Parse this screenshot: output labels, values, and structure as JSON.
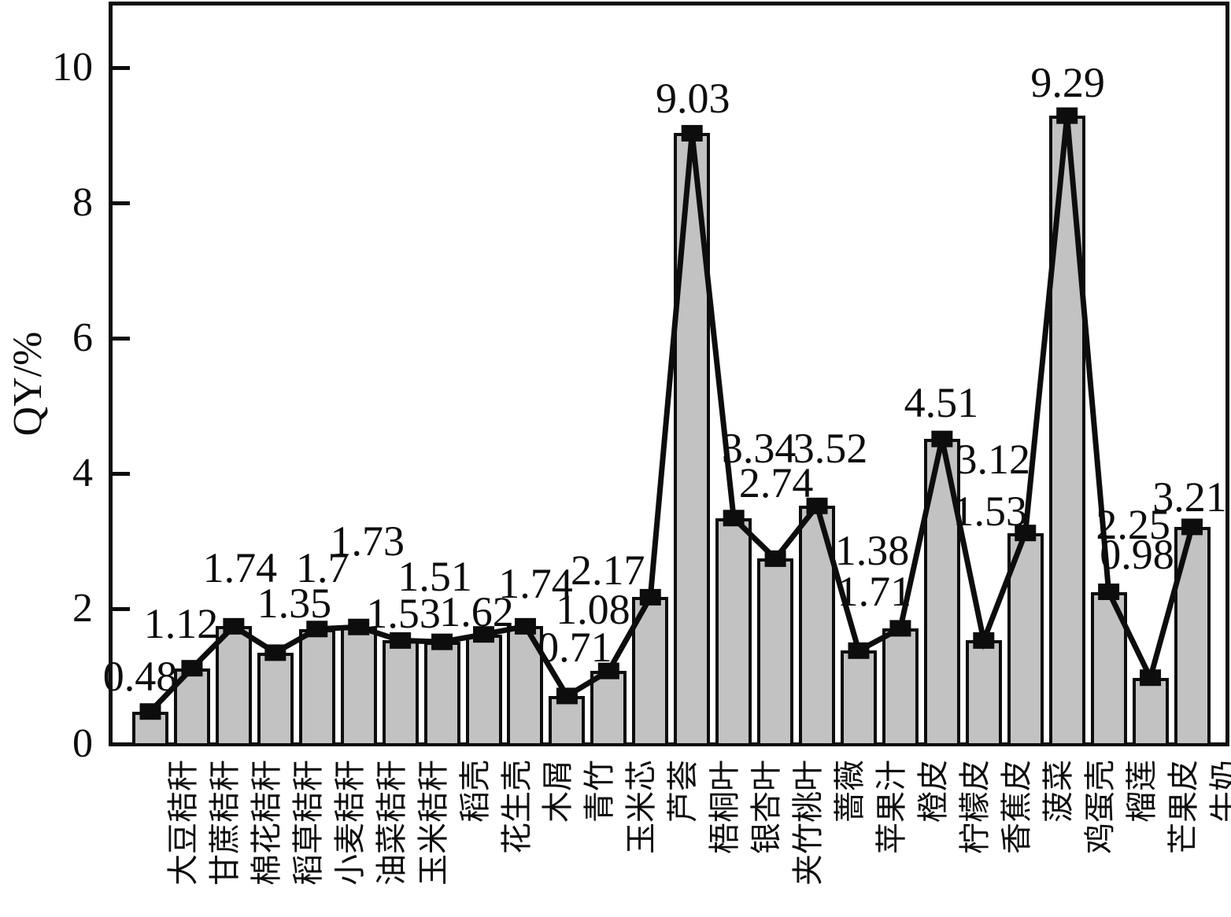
{
  "figure": {
    "background": "#ffffff",
    "ink_color": "#0d0d0d"
  },
  "chart_data": {
    "type": "bar",
    "overlay": "line",
    "marker": "square",
    "title": "",
    "xlabel": "",
    "ylabel": "QY/%",
    "ylim": [
      0,
      11
    ],
    "yticks": [
      10,
      8,
      6,
      4,
      2,
      0
    ],
    "ytick_labels": [
      "10",
      "8",
      "6",
      "4",
      "2",
      "0"
    ],
    "grid": false,
    "legend": "none",
    "bar_fill_color": "#c2c2c2",
    "bar_edge_color": "#0d0d0d",
    "line_color": "#0d0d0d",
    "categories": [
      "大豆秸秆",
      "甘蔗秸秆",
      "棉花秸秆",
      "稻草秸秆",
      "小麦秸秆",
      "油菜秸秆",
      "玉米秸秆",
      "稻壳",
      "花生壳",
      "木屑",
      "青竹",
      "玉米芯",
      "芦荟",
      "梧桐叶",
      "银杏叶",
      "夹竹桃叶",
      "蔷薇",
      "苹果汁",
      "橙皮",
      "柠檬皮",
      "香蕉皮",
      "菠菜",
      "鸡蛋壳",
      "榴莲",
      "芒果皮",
      "牛奶"
    ],
    "values": [
      0.48,
      1.12,
      1.74,
      1.35,
      1.7,
      1.73,
      1.53,
      1.51,
      1.62,
      1.74,
      0.71,
      1.08,
      2.17,
      9.03,
      3.34,
      2.74,
      3.52,
      1.38,
      1.71,
      4.51,
      1.53,
      3.12,
      9.29,
      2.25,
      0.98,
      3.21
    ],
    "value_labels": [
      "0.48",
      "1.12",
      "1.74",
      "1.35",
      "1.7",
      "1.73",
      "1.53",
      "1.51",
      "1.62",
      "1.74",
      "0.71",
      "1.08",
      "2.17",
      "9.03",
      "3.34",
      "2.74",
      "3.52",
      "1.38",
      "1.71",
      "4.51",
      "1.53",
      "3.12",
      "9.29",
      "2.25",
      "0.98",
      "3.21"
    ]
  }
}
